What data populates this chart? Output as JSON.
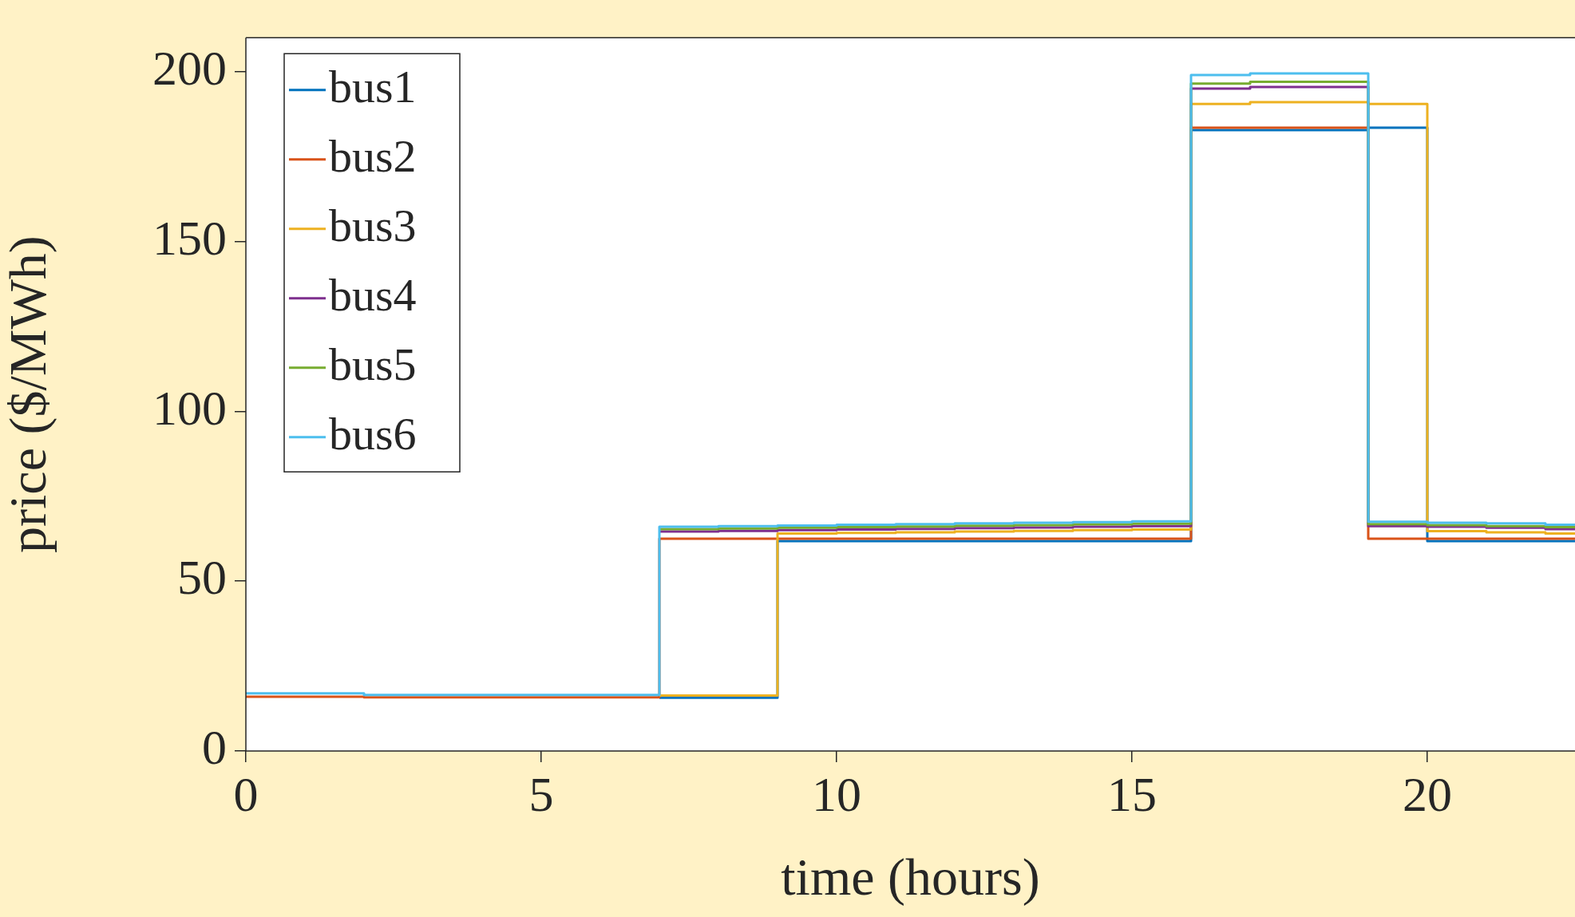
{
  "chart_data": {
    "type": "step",
    "xlabel": "time (hours)",
    "ylabel": "price ($/MWh)",
    "x": [
      0,
      1,
      2,
      3,
      4,
      5,
      6,
      7,
      8,
      9,
      10,
      11,
      12,
      13,
      14,
      15,
      16,
      17,
      18,
      19,
      20,
      21,
      22,
      22.5
    ],
    "series": [
      {
        "name": "bus1",
        "color": "#0072bd",
        "values": [
          null,
          null,
          null,
          null,
          null,
          null,
          null,
          15.7,
          15.7,
          61.8,
          61.8,
          61.8,
          61.8,
          61.8,
          61.8,
          61.8,
          182.8,
          182.8,
          182.8,
          183.5,
          61.8,
          61.8,
          61.8,
          61.8
        ]
      },
      {
        "name": "bus2",
        "color": "#d95319",
        "values": [
          16,
          16,
          15.8,
          15.8,
          15.8,
          15.8,
          15.8,
          62.5,
          62.5,
          62.5,
          62.5,
          62.5,
          62.5,
          62.5,
          62.5,
          62.5,
          183.5,
          183.5,
          183.5,
          62.5,
          62.5,
          62.5,
          62.5,
          62.5
        ]
      },
      {
        "name": "bus3",
        "color": "#edb120",
        "values": [
          null,
          null,
          null,
          null,
          null,
          null,
          null,
          16.3,
          16.3,
          64,
          64.2,
          64.4,
          64.6,
          64.8,
          65,
          65.2,
          190.5,
          191,
          191,
          190.5,
          64.7,
          64.4,
          64,
          64
        ]
      },
      {
        "name": "bus4",
        "color": "#7e2f8e",
        "values": [
          null,
          null,
          null,
          null,
          null,
          null,
          null,
          64.6,
          64.8,
          65,
          65.2,
          65.4,
          65.6,
          65.8,
          66,
          66.2,
          195,
          195.5,
          195.5,
          66.2,
          66,
          65.7,
          65.3,
          65.3
        ]
      },
      {
        "name": "bus5",
        "color": "#77ac30",
        "values": [
          null,
          null,
          null,
          null,
          null,
          null,
          null,
          65.3,
          65.5,
          65.7,
          65.9,
          66.1,
          66.3,
          66.5,
          66.7,
          66.9,
          196.5,
          197,
          197,
          66.8,
          66.5,
          66.2,
          65.9,
          65.9
        ]
      },
      {
        "name": "bus6",
        "color": "#4dbeee",
        "values": [
          17,
          17,
          16.5,
          16.5,
          16.5,
          16.5,
          16.5,
          66,
          66.2,
          66.4,
          66.6,
          66.8,
          67,
          67.2,
          67.4,
          67.6,
          199,
          199.5,
          199.5,
          67.5,
          67.2,
          67,
          66.6,
          66.6
        ]
      }
    ],
    "xlim": [
      0,
      22.5
    ],
    "xticks": [
      0,
      5,
      10,
      15,
      20
    ],
    "ylim": [
      0,
      210
    ],
    "yticks": [
      0,
      50,
      100,
      150,
      200
    ],
    "legend": "top left",
    "grid": false
  }
}
